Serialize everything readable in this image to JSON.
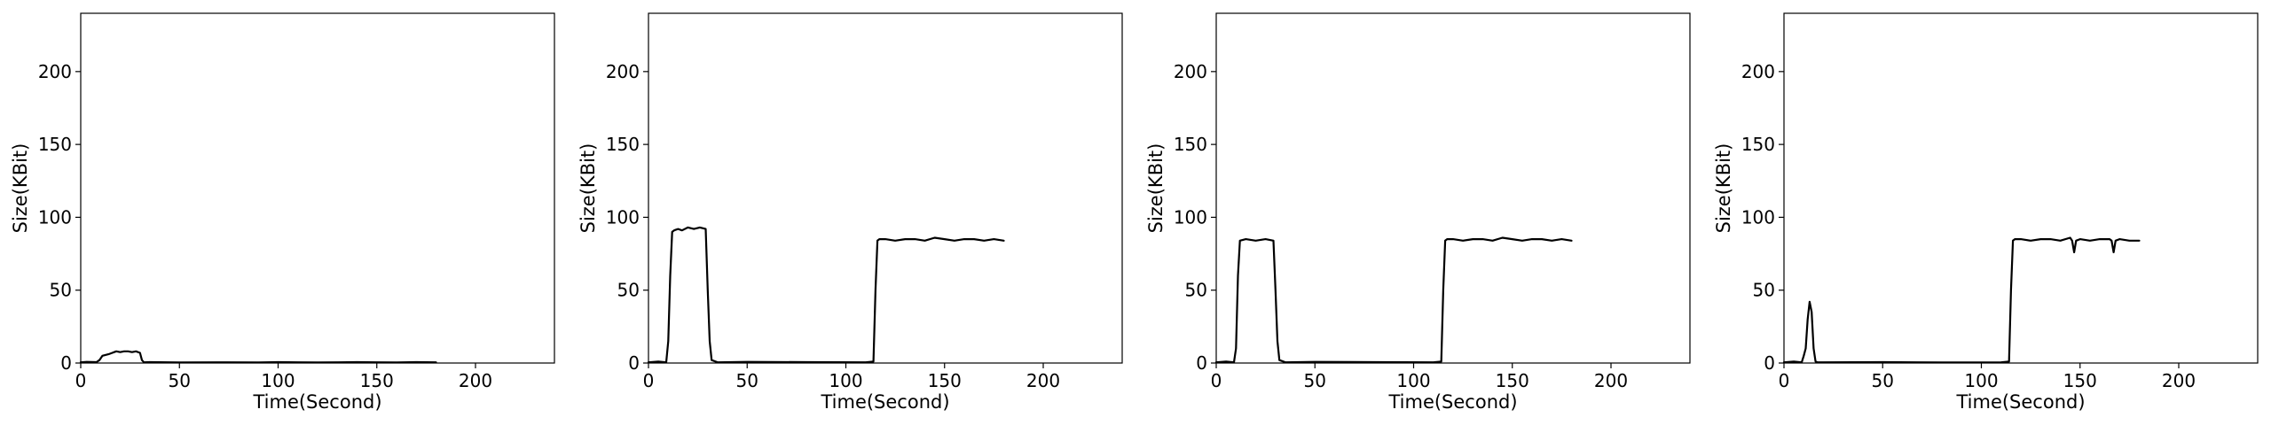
{
  "figure": {
    "panel_count": 4
  },
  "chart_data": [
    {
      "type": "line",
      "xlabel": "Time(Second)",
      "ylabel": "Size(KBit)",
      "xlim": [
        0,
        240
      ],
      "ylim": [
        0,
        240
      ],
      "xticks": [
        0,
        50,
        100,
        150,
        200
      ],
      "yticks": [
        0,
        50,
        100,
        150,
        200
      ],
      "grid": false,
      "color": "#000000",
      "series": [
        {
          "x": [
            0,
            3,
            8,
            9.5,
            11,
            12.5,
            14,
            16,
            18,
            20,
            22,
            24,
            26,
            28,
            30,
            31,
            32,
            35,
            50,
            70,
            90,
            100,
            110,
            120,
            130,
            140,
            150,
            160,
            170,
            180
          ],
          "y": [
            0.5,
            0.8,
            0.6,
            2,
            5,
            5.5,
            6,
            7,
            8,
            7.5,
            8,
            8,
            7.5,
            8,
            7,
            2,
            0.5,
            0.6,
            0.4,
            0.5,
            0.4,
            0.6,
            0.5,
            0.4,
            0.5,
            0.6,
            0.5,
            0.4,
            0.6,
            0.5
          ]
        }
      ]
    },
    {
      "type": "line",
      "xlabel": "Time(Second)",
      "ylabel": "Size(KBit)",
      "xlim": [
        0,
        240
      ],
      "ylim": [
        0,
        240
      ],
      "xticks": [
        0,
        50,
        100,
        150,
        200
      ],
      "yticks": [
        0,
        50,
        100,
        150,
        200
      ],
      "grid": false,
      "color": "#000000",
      "series": [
        {
          "x": [
            0,
            5,
            9,
            10,
            11,
            12,
            13,
            15,
            17,
            20,
            23,
            26,
            29,
            30,
            31,
            32,
            35,
            50,
            80,
            110,
            114,
            115,
            116,
            117,
            120,
            125,
            130,
            135,
            140,
            145,
            150,
            155,
            160,
            165,
            170,
            175,
            180
          ],
          "y": [
            0.5,
            1,
            0.5,
            15,
            60,
            90,
            91,
            92,
            91,
            93,
            92,
            93,
            92,
            50,
            15,
            2,
            0.5,
            0.8,
            0.6,
            0.5,
            1,
            50,
            84,
            85,
            85,
            84,
            85,
            85,
            84,
            86,
            85,
            84,
            85,
            85,
            84,
            85,
            84
          ]
        }
      ]
    },
    {
      "type": "line",
      "xlabel": "Time(Second)",
      "ylabel": "Size(KBit)",
      "xlim": [
        0,
        240
      ],
      "ylim": [
        0,
        240
      ],
      "xticks": [
        0,
        50,
        100,
        150,
        200
      ],
      "yticks": [
        0,
        50,
        100,
        150,
        200
      ],
      "grid": false,
      "color": "#000000",
      "series": [
        {
          "x": [
            0,
            5,
            9,
            10,
            11,
            12,
            15,
            20,
            25,
            29,
            30,
            31,
            32,
            35,
            50,
            80,
            110,
            114,
            115,
            116,
            117,
            120,
            125,
            130,
            135,
            140,
            145,
            150,
            155,
            160,
            165,
            170,
            175,
            180
          ],
          "y": [
            0.5,
            1,
            0.5,
            10,
            60,
            84,
            85,
            84,
            85,
            84,
            50,
            15,
            2,
            0.5,
            0.8,
            0.6,
            0.5,
            1,
            50,
            84,
            85,
            85,
            84,
            85,
            85,
            84,
            86,
            85,
            84,
            85,
            85,
            84,
            85,
            84
          ]
        }
      ]
    },
    {
      "type": "line",
      "xlabel": "Time(Second)",
      "ylabel": "Size(KBit)",
      "xlim": [
        0,
        240
      ],
      "ylim": [
        0,
        240
      ],
      "xticks": [
        0,
        50,
        100,
        150,
        200
      ],
      "yticks": [
        0,
        50,
        100,
        150,
        200
      ],
      "grid": false,
      "color": "#000000",
      "series": [
        {
          "x": [
            0,
            5,
            9,
            10,
            11,
            12,
            13,
            14,
            15,
            16,
            17,
            20,
            50,
            80,
            110,
            114,
            115,
            116,
            117,
            120,
            125,
            130,
            135,
            140,
            145,
            146,
            147,
            148,
            150,
            155,
            160,
            165,
            166,
            167,
            168,
            170,
            175,
            180
          ],
          "y": [
            0.5,
            1,
            0.5,
            5,
            10,
            30,
            42,
            35,
            10,
            1,
            0.5,
            0.5,
            0.6,
            0.4,
            0.5,
            1,
            50,
            84,
            85,
            85,
            84,
            85,
            85,
            84,
            86,
            84,
            76,
            84,
            85,
            84,
            85,
            85,
            84,
            76,
            84,
            85,
            84,
            84
          ]
        }
      ]
    }
  ]
}
